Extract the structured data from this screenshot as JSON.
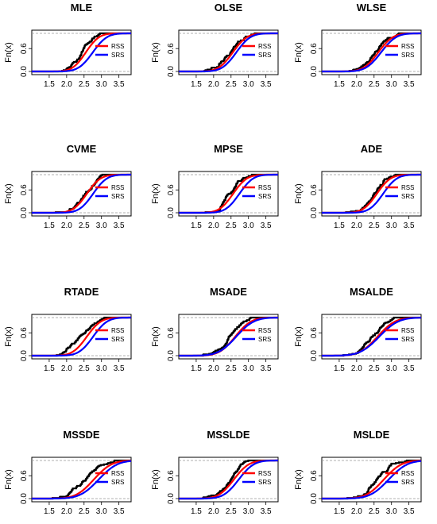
{
  "chart_data": {
    "type": "line",
    "ylabel": "Fn(x)",
    "xticks": [
      "1.5",
      "2.0",
      "2.5",
      "3.0",
      "3.5"
    ],
    "yticks": [
      "0.0",
      "0.6"
    ],
    "xlim": [
      1.0,
      3.85
    ],
    "ylim": [
      0.0,
      1.0
    ],
    "grid": false,
    "legend_position": "right",
    "legend": [
      {
        "name": "RSS",
        "color": "#ff0000"
      },
      {
        "name": "SRS",
        "color": "#0000ff"
      }
    ],
    "empirical_color": "#000000",
    "panels": [
      {
        "title": "MLE",
        "emp_shift": 0.0,
        "rss": {
          "mu": 2.55,
          "s": 0.3
        },
        "srs": {
          "mu": 2.75,
          "s": 0.32
        }
      },
      {
        "title": "OLSE",
        "emp_shift": 0.0,
        "rss": {
          "mu": 2.55,
          "s": 0.32
        },
        "srs": {
          "mu": 2.65,
          "s": 0.32
        }
      },
      {
        "title": "WLSE",
        "emp_shift": 0.0,
        "rss": {
          "mu": 2.62,
          "s": 0.33
        },
        "srs": {
          "mu": 2.7,
          "s": 0.34
        }
      },
      {
        "title": "CVME",
        "emp_shift": 0.0,
        "rss": {
          "mu": 2.58,
          "s": 0.31
        },
        "srs": {
          "mu": 2.76,
          "s": 0.31
        }
      },
      {
        "title": "MPSE",
        "emp_shift": 0.0,
        "rss": {
          "mu": 2.56,
          "s": 0.31
        },
        "srs": {
          "mu": 2.74,
          "s": 0.31
        }
      },
      {
        "title": "ADE",
        "emp_shift": 0.0,
        "rss": {
          "mu": 2.58,
          "s": 0.31
        },
        "srs": {
          "mu": 2.76,
          "s": 0.31
        }
      },
      {
        "title": "RTADE",
        "emp_shift": 0.0,
        "rss": {
          "mu": 2.58,
          "s": 0.32
        },
        "srs": {
          "mu": 2.76,
          "s": 0.32
        }
      },
      {
        "title": "MSADE",
        "emp_shift": 0.0,
        "rss": {
          "mu": 2.62,
          "s": 0.36
        },
        "srs": {
          "mu": 2.65,
          "s": 0.4
        }
      },
      {
        "title": "MSALDE",
        "emp_shift": 0.0,
        "rss": {
          "mu": 2.6,
          "s": 0.4
        },
        "srs": {
          "mu": 2.65,
          "s": 0.43
        }
      },
      {
        "title": "MSSDE",
        "emp_shift": -0.1,
        "rss": {
          "mu": 2.78,
          "s": 0.4
        },
        "srs": {
          "mu": 2.92,
          "s": 0.42
        }
      },
      {
        "title": "MSSLDE",
        "emp_shift": 0.0,
        "rss": {
          "mu": 2.58,
          "s": 0.34
        },
        "srs": {
          "mu": 2.72,
          "s": 0.34
        }
      },
      {
        "title": "MSLDE",
        "emp_shift": -0.1,
        "rss": {
          "mu": 2.78,
          "s": 0.4
        },
        "srs": {
          "mu": 2.92,
          "s": 0.42
        }
      }
    ]
  }
}
